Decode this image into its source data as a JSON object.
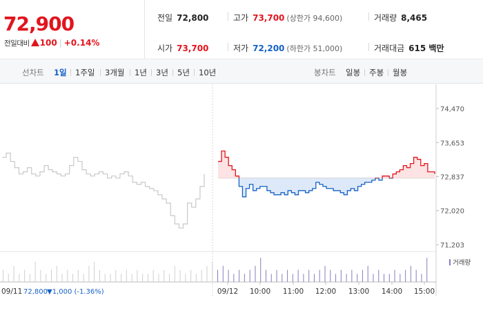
{
  "quote": {
    "price": "72,900",
    "change_label": "전일대비",
    "change_value": "100",
    "change_pct": "+0.14%",
    "stats": {
      "prev_close_label": "전일",
      "prev_close": "72,800",
      "high_label": "고가",
      "high": "73,700",
      "upper_limit": "(상한가 94,600)",
      "volume_label": "거래량",
      "volume": "8,465",
      "open_label": "시가",
      "open": "73,700",
      "low_label": "저가",
      "low": "72,200",
      "lower_limit": "(하한가 51,000)",
      "amount_label": "거래대금",
      "amount": "615 백만"
    }
  },
  "toolbar": {
    "line_label": "선차트",
    "line_periods": [
      "1일",
      "1주일",
      "3개월",
      "1년",
      "3년",
      "5년",
      "10년"
    ],
    "active_period": "1일",
    "candle_label": "봉차트",
    "candle_periods": [
      "일봉",
      "주봉",
      "월봉"
    ]
  },
  "colors": {
    "up": "#e2141d",
    "down": "#1561c5",
    "prev_day": "#c8c8c8"
  },
  "chart_data": {
    "type": "line",
    "y_ticks": [
      "74,470",
      "73,653",
      "72,837",
      "72,020",
      "71,203"
    ],
    "ylim": [
      71000,
      74600
    ],
    "reference_price": 72800,
    "x_ticks": [
      "09/12",
      "10:00",
      "11:00",
      "12:00",
      "13:00",
      "14:00",
      "15:00"
    ],
    "prev_day_label": "09/11",
    "prev_day_close": "72,800",
    "prev_day_change": "▼1,000 (-1.36%)",
    "volume_label": "거래량",
    "series": [
      {
        "values": [
          73300,
          73400,
          73200,
          73050,
          72900,
          72950,
          73050,
          72900,
          72850,
          72950,
          73100,
          73000,
          72950,
          72900,
          72850,
          72900,
          73100,
          73300,
          73200,
          73000,
          72900,
          72850,
          72900,
          72950,
          72900,
          72800,
          72850,
          72800,
          72900,
          72950,
          72850,
          72700,
          72650,
          72700,
          72600,
          72550,
          72500,
          72400,
          72300,
          72200,
          71900,
          71700,
          71600,
          71700,
          72200,
          72100,
          72300,
          72600,
          72900
        ]
      },
      {
        "values": [
          73200,
          73450,
          73300,
          73100,
          73000,
          72850,
          72600,
          72350,
          72550,
          72650,
          72500,
          72550,
          72600,
          72600,
          72500,
          72450,
          72400,
          72400,
          72450,
          72400,
          72500,
          72450,
          72400,
          72500,
          72500,
          72450,
          72500,
          72550,
          72700,
          72650,
          72600,
          72550,
          72550,
          72500,
          72500,
          72450,
          72400,
          72500,
          72550,
          72500,
          72600,
          72650,
          72700,
          72700,
          72750,
          72800,
          72750,
          72850,
          72850,
          72800,
          72900,
          72950,
          73000,
          73100,
          73050,
          73150,
          73300,
          73250,
          73100,
          73150,
          72950,
          72950,
          72900
        ]
      }
    ],
    "volume": [
      3,
      2,
      4,
      2,
      3,
      2,
      5,
      3,
      2,
      3,
      4,
      2,
      3,
      2,
      3,
      2,
      4,
      5,
      3,
      2,
      2,
      3,
      2,
      3,
      2,
      3,
      2,
      2,
      3,
      2,
      3,
      2,
      4,
      3,
      2,
      3,
      2,
      3,
      4,
      5,
      3,
      4,
      3,
      2,
      3,
      2,
      3,
      4,
      6,
      3,
      2,
      3,
      2,
      3,
      2,
      3,
      2,
      3,
      2,
      3,
      4,
      3,
      2,
      3,
      2,
      3,
      2,
      3,
      4,
      2,
      3,
      2,
      2,
      3,
      2,
      3,
      4,
      3,
      2,
      6
    ]
  }
}
